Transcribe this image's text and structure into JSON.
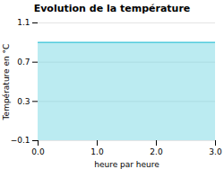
{
  "chart_data": {
    "type": "area",
    "title": "Evolution de la température",
    "xlabel": "heure par heure",
    "ylabel": "Température en °C",
    "x": [
      0,
      3
    ],
    "values": [
      0.9,
      0.9
    ],
    "color": "#55CCDD",
    "xlim": [
      0,
      3
    ],
    "ylim": [
      -0.1,
      1.1
    ],
    "xticks": [
      0,
      1,
      2,
      3
    ],
    "yticks": [
      -0.1,
      0.3,
      0.7,
      1.1
    ],
    "grid": true
  }
}
